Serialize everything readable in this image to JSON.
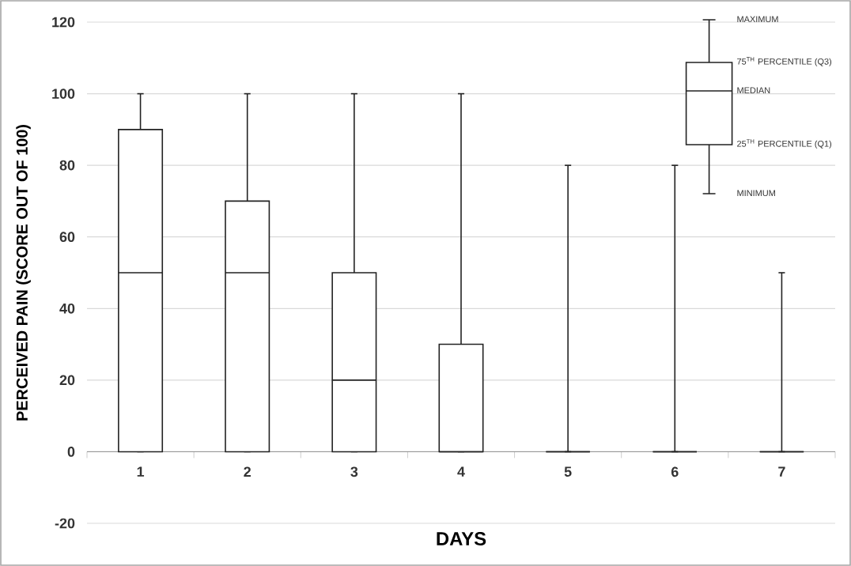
{
  "chart_data": {
    "type": "box",
    "xlabel": "DAYS",
    "ylabel": "PERCEIVED PAIN (SCORE OUT OF 100)",
    "categories": [
      "1",
      "2",
      "3",
      "4",
      "5",
      "6",
      "7"
    ],
    "boxes": [
      {
        "low": 0,
        "q1": 0,
        "median": 50,
        "q3": 90,
        "high": 100
      },
      {
        "low": 0,
        "q1": 0,
        "median": 50,
        "q3": 70,
        "high": 100
      },
      {
        "low": 0,
        "q1": 0,
        "median": 20,
        "q3": 50,
        "high": 100
      },
      {
        "low": 0,
        "q1": 0,
        "median": 0,
        "q3": 30,
        "high": 100
      },
      {
        "low": 0,
        "q1": 0,
        "median": 0,
        "q3": 0,
        "high": 80
      },
      {
        "low": 0,
        "q1": 0,
        "median": 0,
        "q3": 0,
        "high": 80
      },
      {
        "low": 0,
        "q1": 0,
        "median": 0,
        "q3": 0,
        "high": 50
      }
    ],
    "color": "#222222",
    "ylim": [
      -20,
      120
    ],
    "yticks": [
      -20,
      0,
      20,
      40,
      60,
      80,
      100,
      120
    ],
    "grid": "y",
    "annotations": [
      "MAXIMUM",
      "75$^{TH}$ PERCENTILE (Q3)",
      "MEDIAN",
      "25$^{TH}$ PERCENTILE (Q1)",
      "MINIMUM"
    ]
  }
}
